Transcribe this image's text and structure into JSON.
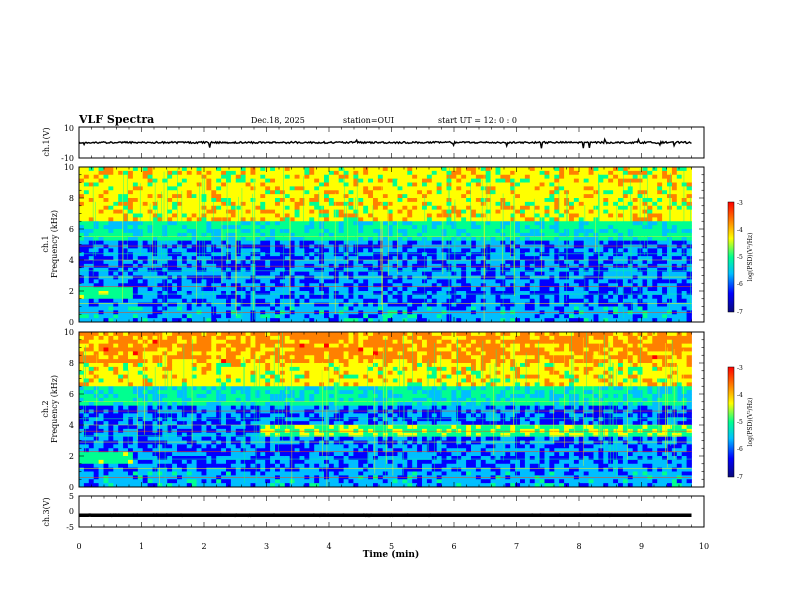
{
  "header": {
    "title": "VLF Spectra",
    "date": "Dec.18, 2025",
    "station": "station=OUI",
    "start": "start  UT  =   12: 0  : 0"
  },
  "chart_data": {
    "type": "heatmap",
    "xlabel": "Time (min)",
    "xlim": [
      0,
      10
    ],
    "xticks": [
      "0",
      "1",
      "2",
      "3",
      "4",
      "5",
      "6",
      "7",
      "8",
      "9",
      "10"
    ],
    "panels": [
      {
        "id": "ch1-waveform",
        "ylabel": "ch.1(V)",
        "ylim": [
          -10,
          10
        ],
        "yticks": [
          "10",
          "-10"
        ],
        "trace_level": 0,
        "recorded_until_min": 9.8
      },
      {
        "id": "ch1-spectrogram",
        "ylabel_top": "ch.1",
        "ylabel": "Frequency (kHz)",
        "ylim": [
          0,
          10
        ],
        "yticks": [
          "0",
          "2",
          "4",
          "6",
          "8",
          "10"
        ],
        "recorded_until_min": 9.8,
        "colorbar": {
          "label": "log(PSD)(V²/Hz)",
          "range": [
            -7,
            -3
          ],
          "ticks": [
            "-3",
            "-4",
            "-5",
            "-6",
            "-7"
          ]
        }
      },
      {
        "id": "ch2-spectrogram",
        "ylabel_top": "ch.2",
        "ylabel": "Frequency (kHz)",
        "ylim": [
          0,
          10
        ],
        "yticks": [
          "0",
          "2",
          "4",
          "6",
          "8",
          "10"
        ],
        "recorded_until_min": 9.8,
        "colorbar": {
          "label": "log(PSD)(V²/Hz)",
          "range": [
            -7,
            -3
          ],
          "ticks": [
            "-3",
            "-4",
            "-5",
            "-6",
            "-7"
          ]
        }
      },
      {
        "id": "ch3-waveform",
        "ylabel": "ch.3(V)",
        "ylim": [
          -5,
          5
        ],
        "yticks": [
          "5",
          "0",
          "-5"
        ],
        "trace_level": -1.2,
        "recorded_until_min": 9.8
      }
    ]
  },
  "colors": {
    "scale": [
      "#0a0a7a",
      "#0000ff",
      "#00bfff",
      "#00ff90",
      "#ffff00",
      "#ff8000",
      "#ff0000"
    ],
    "axis": "#000000"
  }
}
